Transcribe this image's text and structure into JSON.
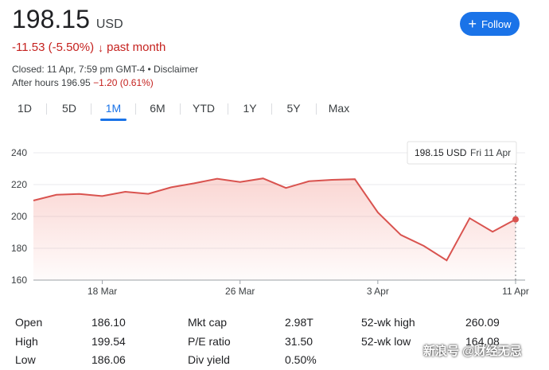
{
  "quote": {
    "price": "198.15",
    "currency": "USD",
    "change": "-11.53 (-5.50%)",
    "change_arrow": "↓",
    "period": "past month",
    "closed": "Closed: 11 Apr, 7:59 pm GMT-4 • Disclaimer",
    "after_hours_label": "After hours 196.95",
    "after_hours_change": "−1.20 (0.61%)"
  },
  "follow_button": {
    "label": "Follow"
  },
  "tabs": [
    {
      "label": "1D",
      "active": false
    },
    {
      "label": "5D",
      "active": false
    },
    {
      "label": "1M",
      "active": true
    },
    {
      "label": "6M",
      "active": false
    },
    {
      "label": "YTD",
      "active": false
    },
    {
      "label": "1Y",
      "active": false
    },
    {
      "label": "5Y",
      "active": false
    },
    {
      "label": "Max",
      "active": false
    }
  ],
  "tooltip": {
    "price": "198.15 USD",
    "date": "Fri 11 Apr"
  },
  "colors": {
    "line": "#d9534f",
    "negative": "#c5221f",
    "accent": "#1a73e8"
  },
  "chart_data": {
    "type": "area",
    "ylim": [
      160,
      240
    ],
    "yticks": [
      160,
      180,
      200,
      220,
      240
    ],
    "xticks": [
      {
        "index": 3,
        "label": "18 Mar"
      },
      {
        "index": 9,
        "label": "26 Mar"
      },
      {
        "index": 15,
        "label": "3 Apr"
      },
      {
        "index": 21,
        "label": "11 Apr"
      }
    ],
    "values": [
      210.0,
      213.6,
      214.1,
      212.8,
      215.5,
      214.2,
      218.3,
      220.8,
      223.7,
      221.6,
      223.9,
      217.9,
      222.1,
      223.0,
      223.4,
      202.5,
      188.4,
      181.5,
      172.4,
      198.9,
      190.4,
      198.15
    ]
  },
  "stats": [
    {
      "label": "Open",
      "value": "186.10"
    },
    {
      "label": "High",
      "value": "199.54"
    },
    {
      "label": "Low",
      "value": "186.06"
    },
    {
      "label": "Mkt cap",
      "value": "2.98T"
    },
    {
      "label": "P/E ratio",
      "value": "31.50"
    },
    {
      "label": "Div yield",
      "value": "0.50%"
    },
    {
      "label": "52-wk high",
      "value": "260.09"
    },
    {
      "label": "52-wk low",
      "value": "164.08"
    }
  ],
  "watermark": "新浪号 @财经无忌"
}
